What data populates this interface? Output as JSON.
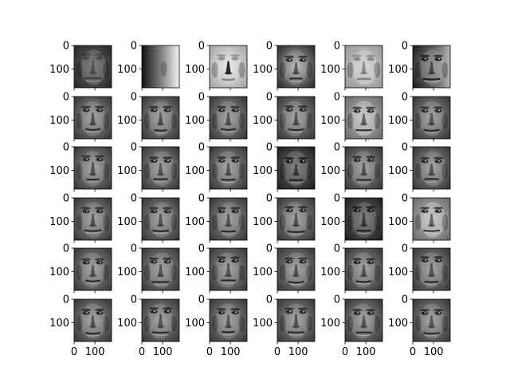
{
  "chart_data": {
    "type": "image_grid",
    "rows": 6,
    "cols": 6,
    "colormap": "gray",
    "x_ticks": [
      "0",
      "100"
    ],
    "y_ticks": [
      "0",
      "100"
    ],
    "tick_values": [
      0,
      100
    ],
    "axis_range": [
      0,
      180
    ],
    "panels": [
      {
        "row": 0,
        "col": 0,
        "variant": "blurry-dark-face"
      },
      {
        "row": 0,
        "col": 1,
        "variant": "left-dark-gradient"
      },
      {
        "row": 0,
        "col": 2,
        "variant": "bright-face-dark-nose"
      },
      {
        "row": 0,
        "col": 3,
        "variant": "high-contrast-face"
      },
      {
        "row": 0,
        "col": 4,
        "variant": "light-uniform-face"
      },
      {
        "row": 0,
        "col": 5,
        "variant": "dark-face-light-right"
      },
      {
        "row": 1,
        "col": 0,
        "variant": "face"
      },
      {
        "row": 1,
        "col": 1,
        "variant": "face"
      },
      {
        "row": 1,
        "col": 2,
        "variant": "face"
      },
      {
        "row": 1,
        "col": 3,
        "variant": "face"
      },
      {
        "row": 1,
        "col": 4,
        "variant": "face-light"
      },
      {
        "row": 1,
        "col": 5,
        "variant": "face"
      },
      {
        "row": 2,
        "col": 0,
        "variant": "face"
      },
      {
        "row": 2,
        "col": 1,
        "variant": "face"
      },
      {
        "row": 2,
        "col": 2,
        "variant": "face"
      },
      {
        "row": 2,
        "col": 3,
        "variant": "face-dark"
      },
      {
        "row": 2,
        "col": 4,
        "variant": "face"
      },
      {
        "row": 2,
        "col": 5,
        "variant": "face"
      },
      {
        "row": 3,
        "col": 0,
        "variant": "face"
      },
      {
        "row": 3,
        "col": 1,
        "variant": "face"
      },
      {
        "row": 3,
        "col": 2,
        "variant": "face"
      },
      {
        "row": 3,
        "col": 3,
        "variant": "face"
      },
      {
        "row": 3,
        "col": 4,
        "variant": "face-dark"
      },
      {
        "row": 3,
        "col": 5,
        "variant": "face-light"
      },
      {
        "row": 4,
        "col": 0,
        "variant": "face"
      },
      {
        "row": 4,
        "col": 1,
        "variant": "face"
      },
      {
        "row": 4,
        "col": 2,
        "variant": "face"
      },
      {
        "row": 4,
        "col": 3,
        "variant": "face"
      },
      {
        "row": 4,
        "col": 4,
        "variant": "face"
      },
      {
        "row": 4,
        "col": 5,
        "variant": "face"
      },
      {
        "row": 5,
        "col": 0,
        "variant": "face"
      },
      {
        "row": 5,
        "col": 1,
        "variant": "face"
      },
      {
        "row": 5,
        "col": 2,
        "variant": "face"
      },
      {
        "row": 5,
        "col": 3,
        "variant": "face"
      },
      {
        "row": 5,
        "col": 4,
        "variant": "face"
      },
      {
        "row": 5,
        "col": 5,
        "variant": "face"
      }
    ]
  }
}
